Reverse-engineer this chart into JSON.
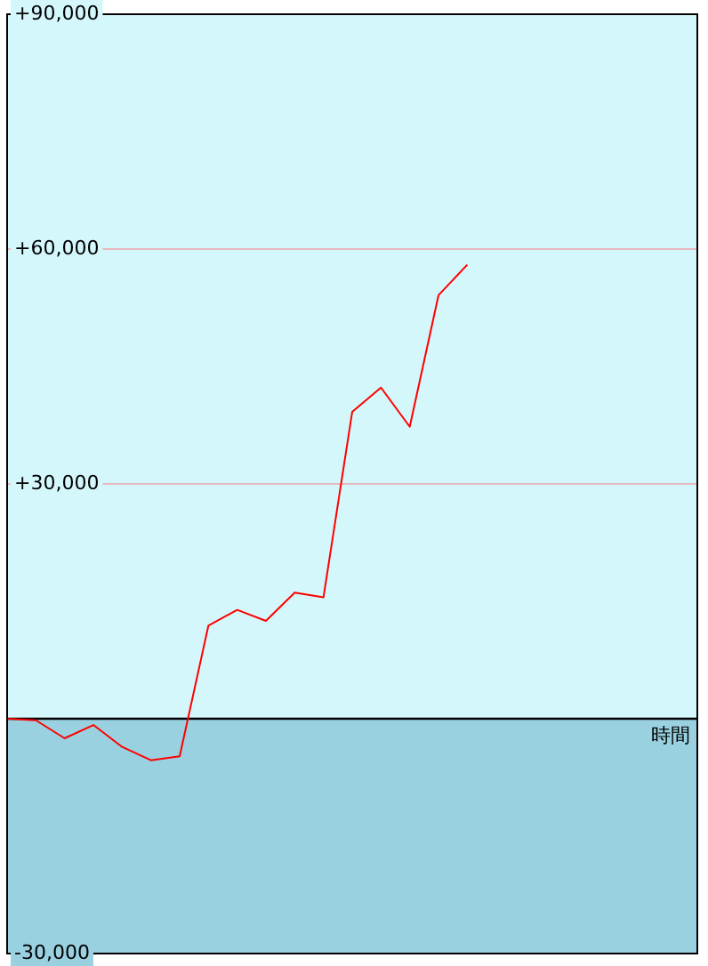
{
  "chart_data": {
    "type": "line",
    "xlabel": "時間",
    "categories": [
      null,
      null,
      null,
      null,
      null,
      null,
      null,
      null,
      null,
      null,
      null,
      null,
      null,
      null,
      null,
      null,
      null,
      null,
      null,
      null,
      null,
      null,
      null,
      null,
      null
    ],
    "series": [
      {
        "color": "#ff0000",
        "values": [
          0,
          -200,
          -2500,
          -800,
          -3600,
          -5300,
          -4800,
          11900,
          13900,
          12500,
          16100,
          15500,
          39200,
          42300,
          37300,
          54100,
          58000,
          null,
          null,
          null,
          null,
          null,
          null,
          null,
          null
        ]
      }
    ],
    "ylim": [
      -30000,
      90000
    ],
    "yticks": [
      {
        "value": -30000,
        "label": "-30,000"
      },
      {
        "value": 0,
        "label": null
      },
      {
        "value": 30000,
        "label": "+30,000"
      },
      {
        "value": 60000,
        "label": "+60,000"
      },
      {
        "value": 90000,
        "label": "+90,000"
      }
    ],
    "bands": [
      {
        "axis": "y",
        "from": -30000,
        "to": 0,
        "color": "#99d1e1"
      }
    ],
    "grid": true,
    "tick_labels": "y"
  }
}
